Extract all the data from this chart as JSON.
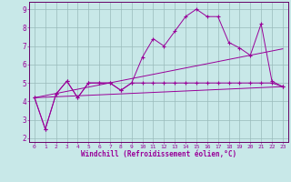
{
  "xlabel": "Windchill (Refroidissement éolien,°C)",
  "bg_color": "#c8e8e8",
  "line_color": "#990099",
  "grid_color": "#99bbbb",
  "border_color": "#660066",
  "xlim": [
    -0.5,
    23.5
  ],
  "ylim": [
    1.8,
    9.4
  ],
  "xticks": [
    0,
    1,
    2,
    3,
    4,
    5,
    6,
    7,
    8,
    9,
    10,
    11,
    12,
    13,
    14,
    15,
    16,
    17,
    18,
    19,
    20,
    21,
    22,
    23
  ],
  "yticks": [
    2,
    3,
    4,
    5,
    6,
    7,
    8,
    9
  ],
  "series1_x": [
    0,
    1,
    2,
    3,
    4,
    5,
    6,
    7,
    8,
    9,
    10,
    11,
    12,
    13,
    14,
    15,
    16,
    17,
    18,
    19,
    20,
    21,
    22,
    23
  ],
  "series1_y": [
    4.2,
    2.5,
    4.4,
    5.1,
    4.2,
    5.0,
    5.0,
    5.0,
    4.6,
    5.0,
    6.4,
    7.4,
    7.0,
    7.8,
    8.6,
    9.0,
    8.6,
    8.6,
    7.2,
    6.9,
    6.5,
    8.2,
    5.1,
    4.8
  ],
  "series2_x": [
    0,
    1,
    2,
    3,
    4,
    5,
    6,
    7,
    8,
    9,
    10,
    11,
    12,
    13,
    14,
    15,
    16,
    17,
    18,
    19,
    20,
    21,
    22,
    23
  ],
  "series2_y": [
    4.2,
    2.5,
    4.4,
    5.1,
    4.2,
    5.0,
    5.0,
    5.0,
    4.6,
    5.0,
    5.0,
    5.0,
    5.0,
    5.0,
    5.0,
    5.0,
    5.0,
    5.0,
    5.0,
    5.0,
    5.0,
    5.0,
    5.0,
    4.8
  ],
  "series3_x": [
    0,
    23
  ],
  "series3_y": [
    4.2,
    6.85
  ],
  "series4_x": [
    0,
    23
  ],
  "series4_y": [
    4.2,
    4.8
  ]
}
